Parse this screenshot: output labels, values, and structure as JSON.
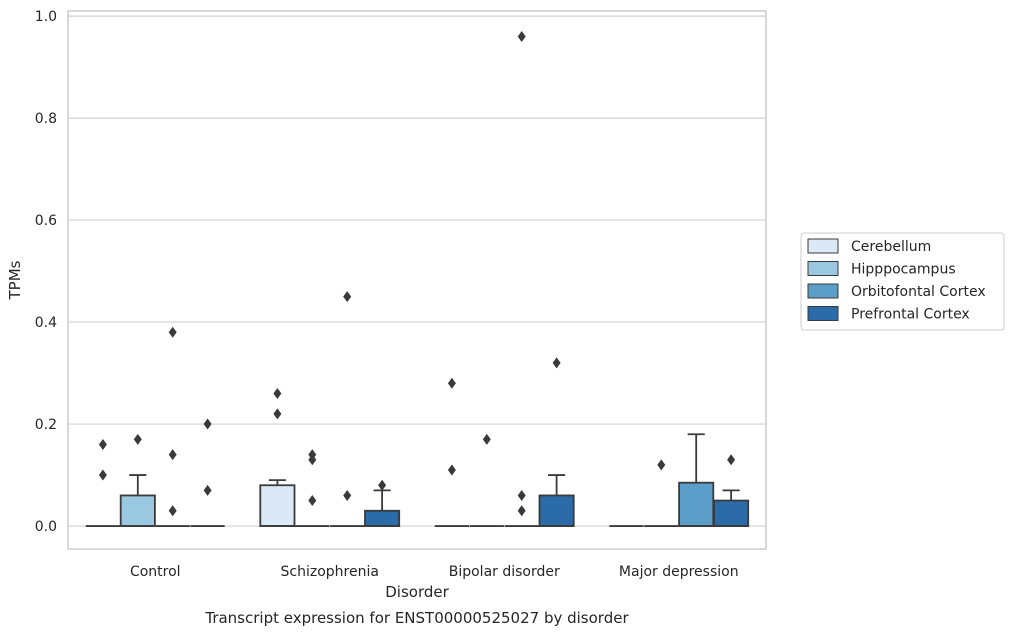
{
  "chart_data": {
    "type": "box",
    "caption": "Transcript expression for ENST00000525027 by disorder",
    "xlabel": "Disorder",
    "ylabel": "TPMs",
    "ylim": [
      -0.045,
      1.01
    ],
    "yticks": [
      0.0,
      0.2,
      0.4,
      0.6,
      0.8,
      1.0
    ],
    "ytick_labels": [
      "0.0",
      "0.2",
      "0.4",
      "0.6",
      "0.8",
      "1.0"
    ],
    "grid": "horizontal",
    "legend_placement": "center-right outside",
    "categories": [
      "Control",
      "Schizophrenia",
      "Bipolar disorder",
      "Major depression"
    ],
    "series": [
      {
        "name": "Cerebellum",
        "color": "#dbe9f6",
        "boxes": [
          {
            "q1": 0,
            "median": 0,
            "q3": 0,
            "whisker_low": 0,
            "whisker_high": 0,
            "outliers": [
              0.1,
              0.16
            ]
          },
          {
            "q1": 0,
            "median": 0,
            "q3": 0.08,
            "whisker_low": 0,
            "whisker_high": 0.09,
            "outliers": [
              0.22,
              0.26
            ]
          },
          {
            "q1": 0,
            "median": 0,
            "q3": 0,
            "whisker_low": 0,
            "whisker_high": 0,
            "outliers": [
              0.11,
              0.28
            ]
          },
          {
            "q1": 0,
            "median": 0,
            "q3": 0,
            "whisker_low": 0,
            "whisker_high": 0,
            "outliers": []
          }
        ]
      },
      {
        "name": "Hipppocampus",
        "color": "#9ac8e0",
        "boxes": [
          {
            "q1": 0,
            "median": 0,
            "q3": 0.06,
            "whisker_low": 0,
            "whisker_high": 0.1,
            "outliers": [
              0.17
            ]
          },
          {
            "q1": 0,
            "median": 0,
            "q3": 0,
            "whisker_low": 0,
            "whisker_high": 0,
            "outliers": [
              0.05,
              0.13,
              0.14
            ]
          },
          {
            "q1": 0,
            "median": 0,
            "q3": 0,
            "whisker_low": 0,
            "whisker_high": 0,
            "outliers": [
              0.17
            ]
          },
          {
            "q1": 0,
            "median": 0,
            "q3": 0,
            "whisker_low": 0,
            "whisker_high": 0,
            "outliers": [
              0.12
            ]
          }
        ]
      },
      {
        "name": "Orbitofontal Cortex",
        "color": "#5a9ec9",
        "boxes": [
          {
            "q1": 0,
            "median": 0,
            "q3": 0,
            "whisker_low": 0,
            "whisker_high": 0,
            "outliers": [
              0.03,
              0.14,
              0.38
            ]
          },
          {
            "q1": 0,
            "median": 0,
            "q3": 0,
            "whisker_low": 0,
            "whisker_high": 0,
            "outliers": [
              0.06,
              0.45
            ]
          },
          {
            "q1": 0,
            "median": 0,
            "q3": 0,
            "whisker_low": 0,
            "whisker_high": 0,
            "outliers": [
              0.03,
              0.06,
              0.96
            ]
          },
          {
            "q1": 0,
            "median": 0,
            "q3": 0.085,
            "whisker_low": 0,
            "whisker_high": 0.18,
            "outliers": []
          }
        ]
      },
      {
        "name": "Prefrontal Cortex",
        "color": "#2b6ba8",
        "boxes": [
          {
            "q1": 0,
            "median": 0,
            "q3": 0,
            "whisker_low": 0,
            "whisker_high": 0,
            "outliers": [
              0.07,
              0.2
            ]
          },
          {
            "q1": 0,
            "median": 0,
            "q3": 0.03,
            "whisker_low": 0,
            "whisker_high": 0.07,
            "outliers": [
              0.08
            ]
          },
          {
            "q1": 0,
            "median": 0,
            "q3": 0.06,
            "whisker_low": 0,
            "whisker_high": 0.1,
            "outliers": [
              0.32
            ]
          },
          {
            "q1": 0,
            "median": 0,
            "q3": 0.05,
            "whisker_low": 0,
            "whisker_high": 0.07,
            "outliers": [
              0.13
            ]
          }
        ]
      }
    ]
  }
}
